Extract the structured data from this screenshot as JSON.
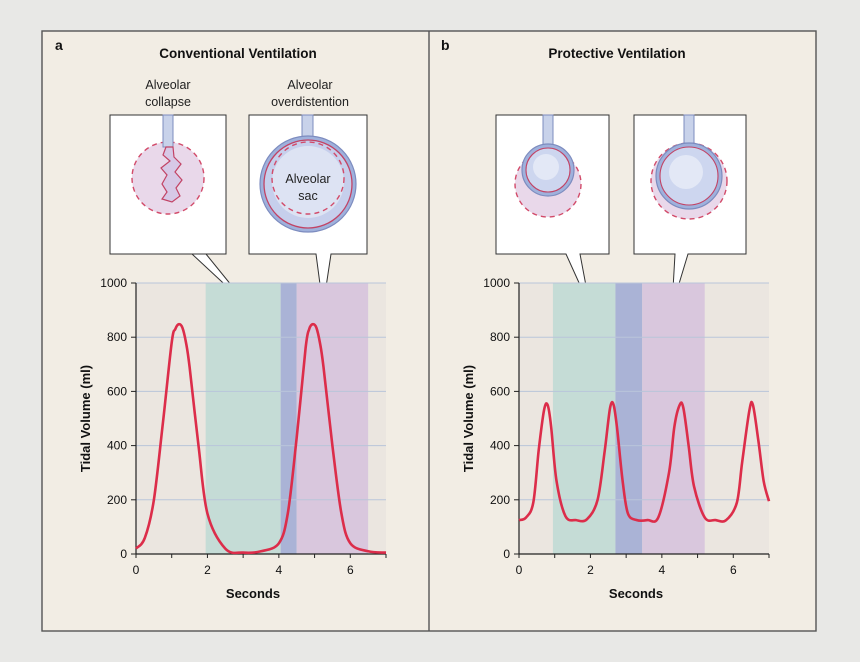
{
  "colors": {
    "panel_bg": "#f2ede4",
    "curve": "#dc2d4a",
    "gridline": "#b9c5da",
    "shade_green": "#c5dcd6",
    "shade_blue": "#aab3d6",
    "shade_purple": "#d9c7dd",
    "shade_gray": "#ebe6e0"
  },
  "panels": [
    {
      "letter": "a",
      "title": "Conventional Ventilation",
      "annotations": {
        "collapse": [
          "Alveolar",
          "collapse"
        ],
        "overdistention": [
          "Alveolar",
          "overdistention"
        ],
        "sac": [
          "Alveolar",
          "sac"
        ]
      },
      "icons": [
        "collapsed-alveolus-icon",
        "overdistended-alveolus-icon"
      ]
    },
    {
      "letter": "b",
      "title": "Protective Ventilation",
      "annotations": {},
      "icons": [
        "protected-alveolus-icon",
        "protected-alveolus-icon"
      ]
    }
  ],
  "chart_data": [
    {
      "type": "line",
      "xlabel": "Seconds",
      "ylabel": "Tidal Volume (ml)",
      "xlim": [
        0,
        7
      ],
      "ylim": [
        0,
        1000
      ],
      "xticks": [
        0,
        2,
        4,
        6
      ],
      "yticks": [
        0,
        200,
        400,
        600,
        800,
        1000
      ],
      "grid": "horizontal",
      "x": [
        0,
        0.25,
        0.5,
        0.75,
        1.0,
        1.1,
        1.2,
        1.3,
        1.4,
        1.5,
        1.75,
        2.0,
        2.5,
        3.0,
        3.5,
        4.0,
        4.25,
        4.5,
        4.75,
        4.85,
        4.95,
        5.05,
        5.15,
        5.25,
        5.5,
        5.75,
        6.0,
        6.5,
        7.0
      ],
      "series": [
        {
          "values": [
            20,
            60,
            200,
            480,
            780,
            830,
            848,
            835,
            780,
            690,
            400,
            150,
            20,
            5,
            10,
            40,
            150,
            430,
            760,
            830,
            848,
            835,
            780,
            690,
            400,
            150,
            40,
            10,
            5
          ]
        }
      ],
      "bands": [
        {
          "from": 1.95,
          "to": 4.05,
          "color": "green"
        },
        {
          "from": 4.05,
          "to": 4.5,
          "color": "blue"
        },
        {
          "from": 4.5,
          "to": 6.5,
          "color": "purple"
        }
      ]
    },
    {
      "type": "line",
      "xlabel": "Seconds",
      "ylabel": "Tidal Volume (ml)",
      "xlim": [
        0,
        7
      ],
      "ylim": [
        0,
        1000
      ],
      "xticks": [
        0,
        2,
        4,
        6
      ],
      "yticks": [
        0,
        200,
        400,
        600,
        800,
        1000
      ],
      "grid": "horizontal",
      "x": [
        0,
        0.2,
        0.4,
        0.55,
        0.7,
        0.8,
        0.9,
        1.05,
        1.3,
        1.6,
        1.9,
        2.2,
        2.4,
        2.55,
        2.65,
        2.75,
        2.9,
        3.05,
        3.3,
        3.6,
        3.9,
        4.2,
        4.35,
        4.5,
        4.6,
        4.75,
        4.9,
        5.2,
        5.5,
        5.8,
        6.1,
        6.25,
        6.45,
        6.55,
        6.7,
        6.85,
        7.0
      ],
      "series": [
        {
          "values": [
            125,
            135,
            190,
            380,
            530,
            550,
            470,
            270,
            140,
            125,
            128,
            200,
            380,
            540,
            550,
            460,
            270,
            150,
            125,
            125,
            135,
            300,
            470,
            550,
            540,
            400,
            250,
            135,
            125,
            125,
            190,
            340,
            530,
            550,
            420,
            270,
            195
          ]
        }
      ],
      "bands": [
        {
          "from": 0.95,
          "to": 2.7,
          "color": "green"
        },
        {
          "from": 2.7,
          "to": 3.45,
          "color": "blue"
        },
        {
          "from": 3.45,
          "to": 5.2,
          "color": "purple"
        }
      ]
    }
  ]
}
